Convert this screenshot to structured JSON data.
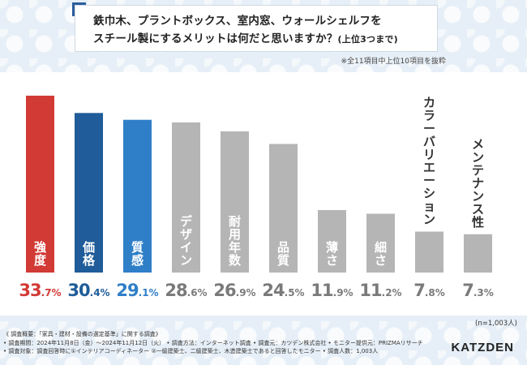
{
  "header": {
    "title_line1": "鉄巾木、プラントボックス、室内窓、ウォールシェルフを",
    "title_line2": "スチール製にするメリットは何だと思いますか？",
    "title_sub": "(上位3つまで)",
    "note": "※全11項目中上位10項目を抜粋"
  },
  "chart_data": {
    "type": "bar",
    "categories": [
      "強度",
      "価格",
      "質感",
      "デザイン",
      "耐用年数",
      "品質",
      "薄さ",
      "細さ",
      "カラーバリエーション",
      "メンテナンス性"
    ],
    "values": [
      33.7,
      30.4,
      29.1,
      28.6,
      26.9,
      24.5,
      11.9,
      11.2,
      7.8,
      7.3
    ],
    "value_labels": [
      {
        "int": "33",
        "dec": ".7%"
      },
      {
        "int": "30",
        "dec": ".4%"
      },
      {
        "int": "29",
        "dec": ".1%"
      },
      {
        "int": "28",
        "dec": ".6%"
      },
      {
        "int": "26",
        "dec": ".9%"
      },
      {
        "int": "24",
        "dec": ".5%"
      },
      {
        "int": "11",
        "dec": ".9%"
      },
      {
        "int": "11",
        "dec": ".2%"
      },
      {
        "int": "7",
        "dec": ".8%"
      },
      {
        "int": "7",
        "dec": ".3%"
      }
    ],
    "bar_colors": [
      "#d23a35",
      "#1f5c99",
      "#2f7fc8",
      "#b5b5b5",
      "#b5b5b5",
      "#b5b5b5",
      "#b5b5b5",
      "#b5b5b5",
      "#b5b5b5",
      "#b5b5b5"
    ],
    "value_colors": [
      "#d23a35",
      "#1f5c99",
      "#2f7fc8",
      "#7a7a7a",
      "#7a7a7a",
      "#7a7a7a",
      "#7a7a7a",
      "#7a7a7a",
      "#7a7a7a",
      "#7a7a7a"
    ],
    "label_inside": [
      true,
      true,
      true,
      true,
      true,
      true,
      true,
      true,
      false,
      false
    ],
    "title": "",
    "xlabel": "",
    "ylabel": "",
    "ylim": [
      0,
      34
    ]
  },
  "sample_note": "(n=1,003人)",
  "footer": {
    "line1": "《 調査概要：「家具・建材・設備の選定基準」に関する調査》",
    "line2": "• 調査期間：2024年11月8日（金）〜2024年11月12日（火） • 調査方法：インターネット調査 • 調査元：カツデン株式会社 • モニター提供元：PRIZMAリサーチ",
    "line3": "• 調査対象：調査回答時に①インテリアコーディネーター ②一級建築士、二級建築士、木造建築士であると回答したモニター • 調査人数：1,003人"
  },
  "logo": "KATZDEN"
}
